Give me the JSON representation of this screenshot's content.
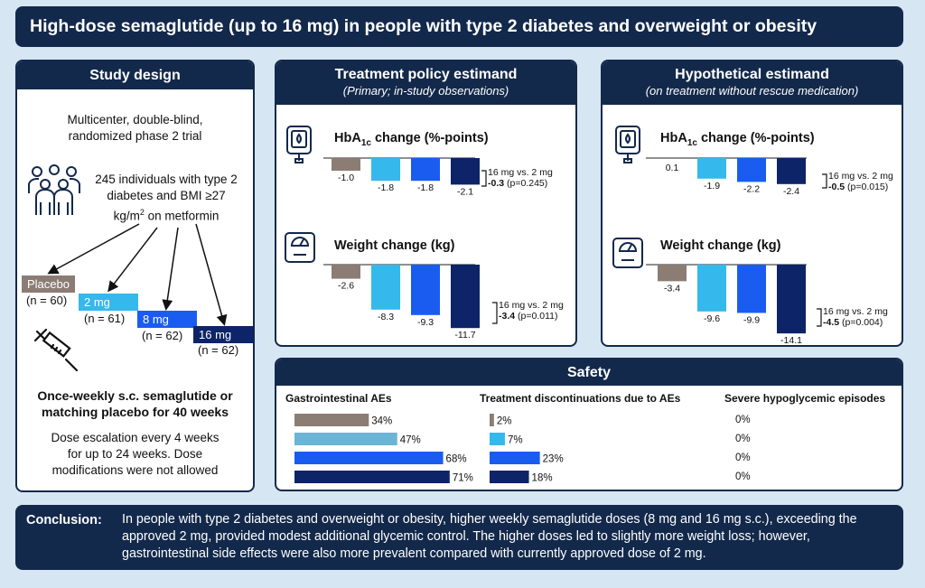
{
  "title": "High-dose semaglutide (up to 16 mg) in people with type 2 diabetes and overweight or obesity",
  "study_design": {
    "heading": "Study design",
    "trial_line1": "Multicenter, double-blind,",
    "trial_line2": "randomized phase 2 trial",
    "pop_line1": "245 individuals with type 2",
    "pop_line2": "diabetes and BMI ≥27",
    "pop_line3a": "kg/m",
    "pop_line3sup": "2",
    "pop_line3b": " on metformin",
    "arms": [
      {
        "label": "Placebo",
        "n": "(n = 60)",
        "color": "#8b7d74"
      },
      {
        "label": "2 mg",
        "n": "(n = 61)",
        "color": "#35b8ec"
      },
      {
        "label": "8 mg",
        "n": "(n = 62)",
        "color": "#1a5cf0"
      },
      {
        "label": "16 mg",
        "n": "(n = 62)",
        "color": "#0d2468"
      }
    ],
    "regimen_line1": "Once-weekly s.c. semaglutide or",
    "regimen_line2": "matching placebo for 40 weeks",
    "dose_line1": "Dose escalation every 4 weeks",
    "dose_line2": "for up to 24 weeks. Dose",
    "dose_line3": "modifications were not allowed"
  },
  "treatment_policy": {
    "heading": "Treatment policy estimand",
    "subheading": "(Primary; in-study observations)",
    "hba1c": {
      "title_pre": "HbA",
      "title_sub": "1c",
      "title_post": " change (%-points)",
      "values": [
        -1.0,
        -1.8,
        -1.8,
        -2.1
      ],
      "labels": [
        "-1.0",
        "-1.8",
        "-1.8",
        "-2.1"
      ],
      "cmp_line1": "16 mg vs. 2 mg",
      "cmp_diff": "-0.3",
      "cmp_p": " (p=0.245)"
    },
    "weight": {
      "title": "Weight change (kg)",
      "values": [
        -2.6,
        -8.3,
        -9.3,
        -11.7
      ],
      "labels": [
        "-2.6",
        "-8.3",
        "-9.3",
        "-11.7"
      ],
      "cmp_line1": "16 mg vs. 2 mg",
      "cmp_diff": "-3.4",
      "cmp_p": " (p=0.011)"
    }
  },
  "hypothetical": {
    "heading": "Hypothetical estimand",
    "subheading": "(on treatment without rescue medication)",
    "hba1c": {
      "title_pre": "HbA",
      "title_sub": "1c",
      "title_post": " change (%-points)",
      "values": [
        0.1,
        -1.9,
        -2.2,
        -2.4
      ],
      "labels": [
        "0.1",
        "-1.9",
        "-2.2",
        "-2.4"
      ],
      "cmp_line1": "16 mg vs. 2 mg",
      "cmp_diff": "-0.5",
      "cmp_p": " (p=0.015)"
    },
    "weight": {
      "title": "Weight change (kg)",
      "values": [
        -3.4,
        -9.6,
        -9.9,
        -14.1
      ],
      "labels": [
        "-3.4",
        "-9.6",
        "-9.9",
        "-14.1"
      ],
      "cmp_line1": "16 mg vs. 2 mg",
      "cmp_diff": "-4.5",
      "cmp_p": " (p=0.004)"
    }
  },
  "safety": {
    "heading": "Safety",
    "gi": {
      "header": "Gastrointestinal AEs",
      "values": [
        34,
        47,
        68,
        71
      ],
      "labels": [
        "34%",
        "47%",
        "68%",
        "71%"
      ]
    },
    "disc": {
      "header": "Treatment discontinuations due to AEs",
      "values": [
        2,
        7,
        23,
        18
      ],
      "labels": [
        "2%",
        "7%",
        "23%",
        "18%"
      ]
    },
    "hypo": {
      "header": "Severe hypoglycemic episodes",
      "labels": [
        "0%",
        "0%",
        "0%",
        "0%"
      ]
    },
    "gi_colors": [
      "#8b7d74",
      "#6ab4d4",
      "#1a5cf0",
      "#0d2468"
    ]
  },
  "conclusion": {
    "label": "Conclusion:",
    "text": "In people with type 2 diabetes and overweight or obesity, higher weekly semaglutide doses (8 mg and 16 mg s.c.), exceeding the approved 2 mg, provided modest additional glycemic control. The higher doses led to slightly more weight loss; however, gastrointestinal side effects were also more prevalent compared with currently approved dose of 2 mg."
  },
  "chart_data": [
    {
      "type": "bar",
      "title": "HbA1c change (%-points) — Treatment policy estimand",
      "categories": [
        "Placebo",
        "2 mg",
        "8 mg",
        "16 mg"
      ],
      "values": [
        -1.0,
        -1.8,
        -1.8,
        -2.1
      ]
    },
    {
      "type": "bar",
      "title": "Weight change (kg) — Treatment policy estimand",
      "categories": [
        "Placebo",
        "2 mg",
        "8 mg",
        "16 mg"
      ],
      "values": [
        -2.6,
        -8.3,
        -9.3,
        -11.7
      ]
    },
    {
      "type": "bar",
      "title": "HbA1c change (%-points) — Hypothetical estimand",
      "categories": [
        "Placebo",
        "2 mg",
        "8 mg",
        "16 mg"
      ],
      "values": [
        0.1,
        -1.9,
        -2.2,
        -2.4
      ]
    },
    {
      "type": "bar",
      "title": "Weight change (kg) — Hypothetical estimand",
      "categories": [
        "Placebo",
        "2 mg",
        "8 mg",
        "16 mg"
      ],
      "values": [
        -3.4,
        -9.6,
        -9.9,
        -14.1
      ]
    },
    {
      "type": "bar",
      "title": "Gastrointestinal AEs",
      "categories": [
        "Placebo",
        "2 mg",
        "8 mg",
        "16 mg"
      ],
      "values": [
        34,
        47,
        68,
        71
      ]
    },
    {
      "type": "bar",
      "title": "Treatment discontinuations due to AEs",
      "categories": [
        "Placebo",
        "2 mg",
        "8 mg",
        "16 mg"
      ],
      "values": [
        2,
        7,
        23,
        18
      ]
    },
    {
      "type": "table",
      "title": "Severe hypoglycemic episodes",
      "categories": [
        "Placebo",
        "2 mg",
        "8 mg",
        "16 mg"
      ],
      "values": [
        0,
        0,
        0,
        0
      ]
    }
  ]
}
